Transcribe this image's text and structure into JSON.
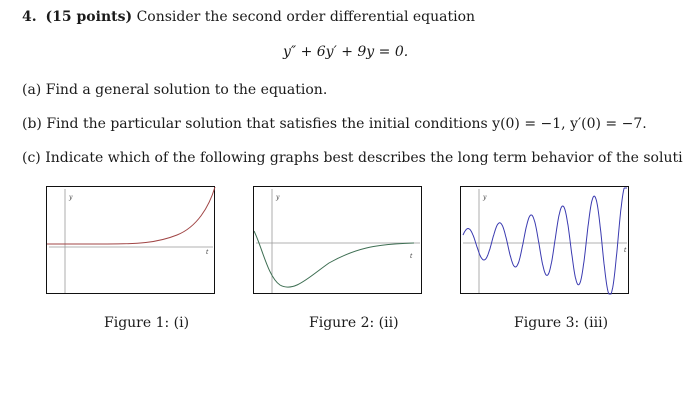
{
  "problem": {
    "number": "4.",
    "points": "(15 points)",
    "intro": "Consider the second order differential equation",
    "equation": "y″ + 6y′ + 9y = 0."
  },
  "parts": [
    {
      "label": "(a)",
      "text": "Find a general solution to the equation."
    },
    {
      "label": "(b)",
      "text": "Find the particular solution that satisfies the initial conditions y(0) = −1, y′(0) = −7."
    },
    {
      "label": "(c)",
      "text": "Indicate which of the following graphs best describes the long term behavior of the solution."
    }
  ],
  "figures": [
    {
      "caption": "Figure 1: (i)",
      "y_label": "y",
      "t_label": "t",
      "curve_color": "#a04545"
    },
    {
      "caption": "Figure 2: (ii)",
      "y_label": "y",
      "t_label": "t",
      "curve_color": "#3d6e52"
    },
    {
      "caption": "Figure 3: (iii)",
      "y_label": "y",
      "t_label": "t",
      "curve_color": "#3a3ab0"
    }
  ]
}
